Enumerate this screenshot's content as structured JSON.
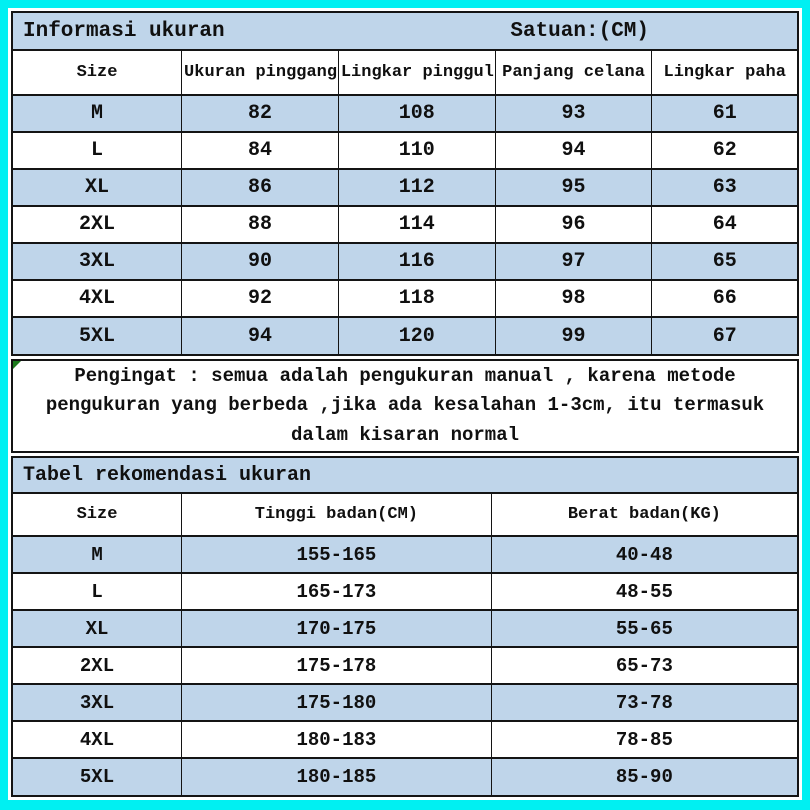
{
  "colors": {
    "frame_cyan": "#00f0f2",
    "row_blue": "#bfd5ea",
    "row_white": "#ffffff",
    "grid_black": "#141414",
    "error_triangle_green": "#1e7b1e"
  },
  "size_table": {
    "title": "Informasi ukuran",
    "unit_label": "Satuan:(CM)",
    "columns": [
      "Size",
      "Ukuran pinggang",
      "Lingkar pinggul",
      "Panjang celana",
      "Lingkar paha"
    ],
    "rows": [
      [
        "M",
        "82",
        "108",
        "93",
        "61"
      ],
      [
        "L",
        "84",
        "110",
        "94",
        "62"
      ],
      [
        "XL",
        "86",
        "112",
        "95",
        "63"
      ],
      [
        "2XL",
        "88",
        "114",
        "96",
        "64"
      ],
      [
        "3XL",
        "90",
        "116",
        "97",
        "65"
      ],
      [
        "4XL",
        "92",
        "118",
        "98",
        "66"
      ],
      [
        "5XL",
        "94",
        "120",
        "99",
        "67"
      ]
    ]
  },
  "reminder_note": "Pengingat : semua adalah pengukuran manual , karena metode pengukuran yang berbeda ,jika ada kesalahan 1-3cm, itu termasuk dalam kisaran normal",
  "recommendation_table": {
    "title": "Tabel rekomendasi ukuran",
    "columns": [
      "Size",
      "Tinggi badan(CM)",
      "Berat badan(KG)"
    ],
    "rows": [
      [
        "M",
        "155-165",
        "40-48"
      ],
      [
        "L",
        "165-173",
        "48-55"
      ],
      [
        "XL",
        "170-175",
        "55-65"
      ],
      [
        "2XL",
        "175-178",
        "65-73"
      ],
      [
        "3XL",
        "175-180",
        "73-78"
      ],
      [
        "4XL",
        "180-183",
        "78-85"
      ],
      [
        "5XL",
        "180-185",
        "85-90"
      ]
    ]
  },
  "chart_data": [
    {
      "type": "table",
      "title": "Informasi ukuran — Satuan:(CM)",
      "columns": [
        "Size",
        "Ukuran pinggang",
        "Lingkar pinggul",
        "Panjang celana",
        "Lingkar paha"
      ],
      "rows": [
        [
          "M",
          82,
          108,
          93,
          61
        ],
        [
          "L",
          84,
          110,
          94,
          62
        ],
        [
          "XL",
          86,
          112,
          95,
          63
        ],
        [
          "2XL",
          88,
          114,
          96,
          64
        ],
        [
          "3XL",
          90,
          116,
          97,
          65
        ],
        [
          "4XL",
          92,
          118,
          98,
          66
        ],
        [
          "5XL",
          94,
          120,
          99,
          67
        ]
      ]
    },
    {
      "type": "table",
      "title": "Tabel rekomendasi ukuran",
      "columns": [
        "Size",
        "Tinggi badan(CM)",
        "Berat badan(KG)"
      ],
      "rows": [
        [
          "M",
          "155-165",
          "40-48"
        ],
        [
          "L",
          "165-173",
          "48-55"
        ],
        [
          "XL",
          "170-175",
          "55-65"
        ],
        [
          "2XL",
          "175-178",
          "65-73"
        ],
        [
          "3XL",
          "175-180",
          "73-78"
        ],
        [
          "4XL",
          "180-183",
          "78-85"
        ],
        [
          "5XL",
          "180-185",
          "85-90"
        ]
      ]
    }
  ]
}
